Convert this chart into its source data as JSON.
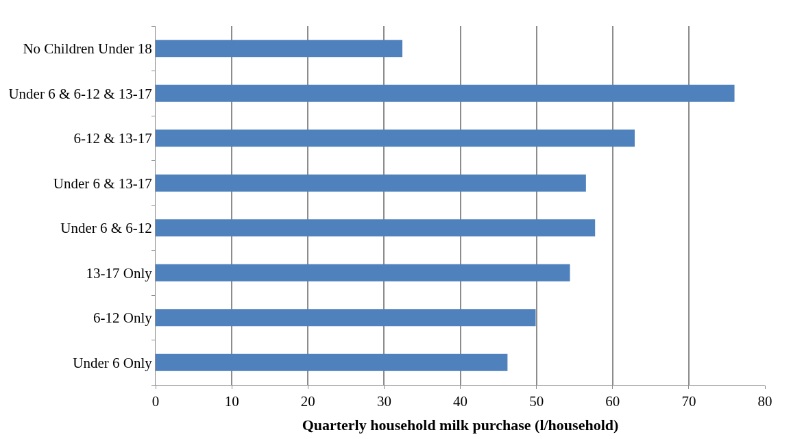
{
  "chart_data": {
    "type": "bar",
    "orientation": "horizontal",
    "xlabel": "Quarterly household milk purchase (l/household)",
    "categories": [
      "No Children Under 18",
      "Under 6 & 6-12 & 13-17",
      "6-12 & 13-17",
      "Under 6 & 13-17",
      "Under 6 & 6-12",
      "13-17 Only",
      "6-12 Only",
      "Under 6 Only"
    ],
    "values": [
      32.4,
      76.0,
      62.9,
      56.5,
      57.7,
      54.4,
      49.9,
      46.2
    ],
    "color": "#4f81bd",
    "xlim": [
      0,
      80
    ],
    "xticks": [
      0,
      10,
      20,
      30,
      40,
      50,
      60,
      70,
      80
    ],
    "grid": "x"
  }
}
